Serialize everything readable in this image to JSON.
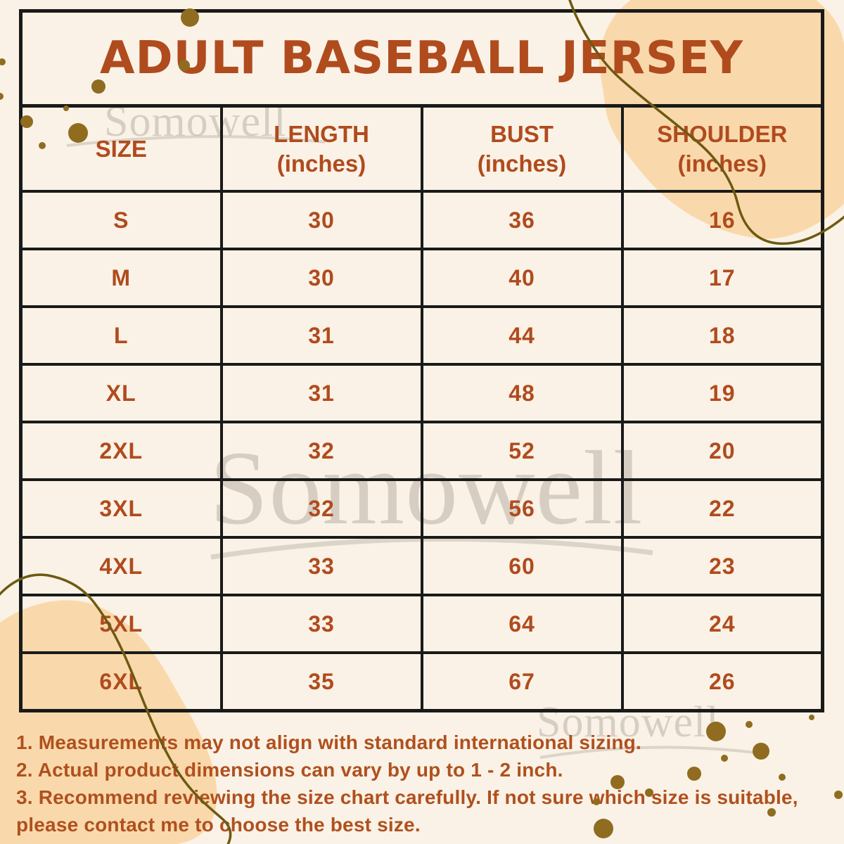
{
  "title": "ADULT BASEBALL JERSEY",
  "watermark": {
    "text": "Somowell"
  },
  "table": {
    "headers": [
      {
        "label": "SIZE",
        "unit": ""
      },
      {
        "label": "LENGTH",
        "unit": "(inches)"
      },
      {
        "label": "BUST",
        "unit": "(inches)"
      },
      {
        "label": "SHOULDER",
        "unit": "(inches)"
      }
    ]
  },
  "chart_data": {
    "type": "table",
    "title": "ADULT BASEBALL JERSEY",
    "columns": [
      "SIZE",
      "LENGTH (inches)",
      "BUST (inches)",
      "SHOULDER (inches)"
    ],
    "rows": [
      [
        "S",
        "30",
        "36",
        "16"
      ],
      [
        "M",
        "30",
        "40",
        "17"
      ],
      [
        "L",
        "31",
        "44",
        "18"
      ],
      [
        "XL",
        "31",
        "48",
        "19"
      ],
      [
        "2XL",
        "32",
        "52",
        "20"
      ],
      [
        "3XL",
        "32",
        "56",
        "22"
      ],
      [
        "4XL",
        "33",
        "60",
        "23"
      ],
      [
        "5XL",
        "33",
        "64",
        "24"
      ],
      [
        "6XL",
        "35",
        "67",
        "26"
      ]
    ]
  },
  "notes": [
    "1. Measurements may not align with standard international sizing.",
    "2. Actual product dimensions can vary by up to 1 - 2 inch.",
    "3. Recommend reviewing the size chart carefully. If not sure which size is suitable, please contact me to choose the best size."
  ],
  "colors": {
    "background": "#faf2e6",
    "blob_peach": "#f9d9ac",
    "accent_rust": "#b04b1e",
    "border_black": "#1a1a1a",
    "dot_olive": "#8f6c1f",
    "squiggle_olive": "#6d5a12",
    "watermark_gray": "#b9b2a6"
  }
}
